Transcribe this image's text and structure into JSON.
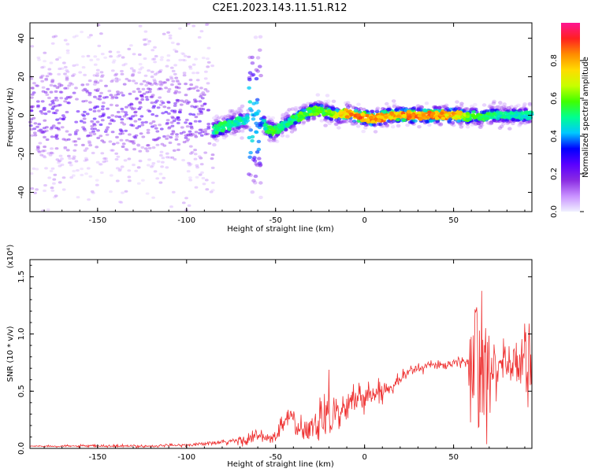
{
  "figure": {
    "title": "C2E1.2023.143.11.51.R12"
  },
  "chart_data": [
    {
      "type": "heatmap",
      "title": "",
      "xlabel": "Height of straight line (km)",
      "ylabel": "Frequency (Hz)",
      "xlim": [
        -188,
        94
      ],
      "ylim": [
        -50,
        48
      ],
      "xticks": [
        -150,
        -100,
        -50,
        0,
        50
      ],
      "yticks": [
        -40,
        -20,
        0,
        20,
        40
      ],
      "colorbar": {
        "label": "Normalized spectral amplitude",
        "range": [
          0,
          1
        ],
        "ticks": [
          "0.0",
          "0.2",
          "0.4",
          "0.6",
          "0.8"
        ],
        "colormap": [
          "#f0f0ff",
          "#c890ff",
          "#8a2be2",
          "#5a00ff",
          "#0000ff",
          "#00c8ff",
          "#00ff90",
          "#40ff00",
          "#c8ff00",
          "#ffdc00",
          "#ff8c00",
          "#ff2020",
          "#ff1493"
        ]
      },
      "ridge": {
        "description_points_x": [
          -188,
          -150,
          -120,
          -100,
          -90,
          -85,
          -80,
          -75,
          -70,
          -65,
          -60,
          -58,
          -55,
          -52,
          -50,
          -45,
          -40,
          -35,
          -30,
          -25,
          -20,
          -15,
          -10,
          -5,
          0,
          5,
          10,
          15,
          20,
          30,
          40,
          50,
          55,
          58,
          60,
          62,
          65,
          70,
          80,
          94
        ],
        "frequency_hz": [
          0,
          0,
          0,
          0,
          -3,
          -8,
          -6,
          -5,
          -3,
          -2,
          -1,
          -2,
          -7,
          -8,
          -8,
          -5,
          -2,
          0,
          2,
          3,
          1,
          0,
          1,
          0,
          -1,
          -2,
          -1,
          0,
          0,
          0,
          0,
          0,
          0,
          -1,
          0,
          0,
          -1,
          0,
          0,
          0
        ],
        "amplitude": [
          0.3,
          0.35,
          0.35,
          0.35,
          0.45,
          0.5,
          0.55,
          0.5,
          0.5,
          0.45,
          0.4,
          0.4,
          0.55,
          0.6,
          0.55,
          0.5,
          0.55,
          0.6,
          0.6,
          0.6,
          0.65,
          0.75,
          0.8,
          0.85,
          0.85,
          0.85,
          0.85,
          0.8,
          0.85,
          0.85,
          0.85,
          0.8,
          0.75,
          0.6,
          0.55,
          0.6,
          0.6,
          0.55,
          0.5,
          0.5
        ]
      }
    },
    {
      "type": "line",
      "title": "",
      "xlabel": "Height of straight line (km)",
      "ylabel": "SNR (10 * v/v)",
      "y_multiplier": "(x10⁴)",
      "xlim": [
        -188,
        94
      ],
      "ylim": [
        0,
        1.65
      ],
      "xticks": [
        -150,
        -100,
        -50,
        0,
        50
      ],
      "yticks": [
        "0.0",
        "0.5",
        "1.0",
        "1.5"
      ],
      "series": [
        {
          "color": "#ee3030",
          "envelope_x": [
            -188,
            -150,
            -120,
            -100,
            -90,
            -80,
            -70,
            -65,
            -60,
            -55,
            -50,
            -48,
            -45,
            -42,
            -40,
            -38,
            -35,
            -30,
            -25,
            -20,
            -15,
            -10,
            -5,
            0,
            5,
            10,
            15,
            20,
            25,
            30,
            35,
            40,
            45,
            50,
            55,
            58,
            60,
            62,
            64,
            66,
            70,
            75,
            80,
            85,
            88,
            90,
            94
          ],
          "envelope_mean": [
            0.02,
            0.02,
            0.02,
            0.03,
            0.04,
            0.05,
            0.07,
            0.09,
            0.11,
            0.08,
            0.1,
            0.15,
            0.22,
            0.3,
            0.25,
            0.18,
            0.12,
            0.18,
            0.3,
            0.35,
            0.3,
            0.35,
            0.45,
            0.45,
            0.48,
            0.5,
            0.55,
            0.62,
            0.67,
            0.7,
            0.72,
            0.73,
            0.73,
            0.74,
            0.75,
            0.75,
            0.8,
            0.85,
            0.85,
            0.8,
            0.75,
            0.73,
            0.75,
            0.72,
            0.75,
            0.78,
            0.8
          ],
          "envelope_spread": [
            0.005,
            0.01,
            0.01,
            0.01,
            0.015,
            0.02,
            0.04,
            0.05,
            0.05,
            0.05,
            0.06,
            0.08,
            0.12,
            0.1,
            0.1,
            0.08,
            0.08,
            0.12,
            0.2,
            0.25,
            0.15,
            0.12,
            0.1,
            0.1,
            0.08,
            0.08,
            0.06,
            0.05,
            0.04,
            0.04,
            0.04,
            0.03,
            0.03,
            0.03,
            0.04,
            0.05,
            0.6,
            0.75,
            0.75,
            0.5,
            0.3,
            0.2,
            0.2,
            0.2,
            0.3,
            0.35,
            0.3
          ]
        }
      ]
    }
  ]
}
